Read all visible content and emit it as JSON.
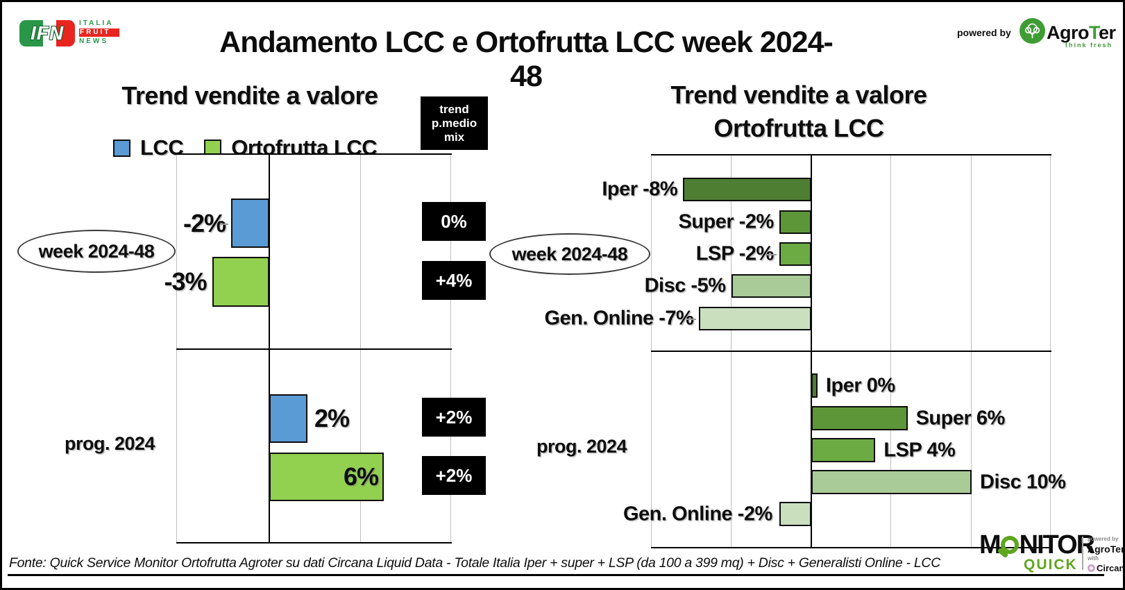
{
  "header": {
    "title": "Andamento LCC e Ortofrutta LCC week 2024-48",
    "ifn": {
      "letters": "IFN",
      "italia": "ITALIA",
      "fruit": "FRUIT",
      "news": "NEWS"
    },
    "powered_by": "powered by",
    "agroter": {
      "agro": "Agro",
      "t": "T",
      "er": "er",
      "tagline": "think fresh"
    }
  },
  "colors": {
    "lcc_blue": "#5B9BD5",
    "ortofrutta_green": "#92D050",
    "iper": "#4E7E32",
    "super": "#5D9638",
    "lsp": "#6CAB44",
    "disc": "#A9CB98",
    "gen_online": "#C9DFBE",
    "ifn_green": "#2a9648",
    "ifn_red": "#e8251f",
    "agroter_green": "#3f9c35",
    "monitor_green": "#5fa51e",
    "box_black": "#000000"
  },
  "chart_data": [
    {
      "type": "bar",
      "orientation": "horizontal",
      "title": "Trend vendite a valore",
      "unit": "%",
      "axis": {
        "range_pct": [
          -5,
          10
        ],
        "gridline_step_pct": 5,
        "grid": true
      },
      "legend_position": "top",
      "legend": [
        {
          "name": "LCC",
          "color": "#5B9BD5"
        },
        {
          "name": "Ortofrutta LCC",
          "color": "#92D050"
        }
      ],
      "pmedio_header_lines": [
        "trend",
        "p.medio",
        "mix"
      ],
      "groups": [
        {
          "label": "week 2024-48",
          "callout": "ellipse",
          "rows": [
            {
              "series": "LCC",
              "value": -2,
              "value_label": "-2%",
              "pmedio_label": "0%",
              "connector": true
            },
            {
              "series": "Ortofrutta LCC",
              "value": -3,
              "value_label": "-3%",
              "pmedio_label": "+4%",
              "connector": false
            }
          ]
        },
        {
          "label": "prog. 2024",
          "callout": "none",
          "rows": [
            {
              "series": "LCC",
              "value": 2,
              "value_label": "2%",
              "pmedio_label": "+2%",
              "connector": false
            },
            {
              "series": "Ortofrutta LCC",
              "value": 6,
              "value_label": "6%",
              "pmedio_label": "+2%",
              "connector": false
            }
          ]
        }
      ]
    },
    {
      "type": "bar",
      "orientation": "horizontal",
      "title_line1": "Trend vendite a valore",
      "title_line2": "Ortofrutta LCC",
      "unit": "%",
      "axis": {
        "range_pct": [
          -10,
          15
        ],
        "gridline_step_pct": 5,
        "grid": true
      },
      "categories": [
        "Iper",
        "Super",
        "LSP",
        "Disc",
        "Gen. Online"
      ],
      "category_colors": {
        "Iper": "#4E7E32",
        "Super": "#5D9638",
        "LSP": "#6CAB44",
        "Disc": "#A9CB98",
        "Gen. Online": "#C9DFBE"
      },
      "series": [
        {
          "name": "week 2024-48",
          "callout": "ellipse",
          "values": [
            -8,
            -2,
            -2,
            -5,
            -7
          ],
          "labels": [
            "Iper -8%",
            "Super -2%",
            "LSP -2%",
            "Disc -5%",
            "Gen. Online -7%"
          ],
          "connectors": [
            false,
            false,
            true,
            false,
            true
          ]
        },
        {
          "name": "prog. 2024",
          "callout": "none",
          "values": [
            0,
            6,
            4,
            10,
            -2
          ],
          "labels": [
            "Iper 0%",
            "Super 6%",
            "LSP 4%",
            "Disc 10%",
            "Gen. Online -2%"
          ],
          "connectors": [
            false,
            false,
            false,
            false,
            false
          ]
        }
      ]
    }
  ],
  "footer": {
    "source": "Fonte: Quick Service Monitor Ortofrutta Agroter su dati Circana Liquid Data - Totale Italia Iper + super + LSP (da 100 a 399 mq) + Disc + Generalisti Online - LCC",
    "monitor": {
      "m": "M",
      "nitor": "NITOR",
      "quick": "QUICK",
      "powered_by": "powered by",
      "agroter": "AgroTer",
      "with_word": "with",
      "circana": "Circana."
    }
  }
}
